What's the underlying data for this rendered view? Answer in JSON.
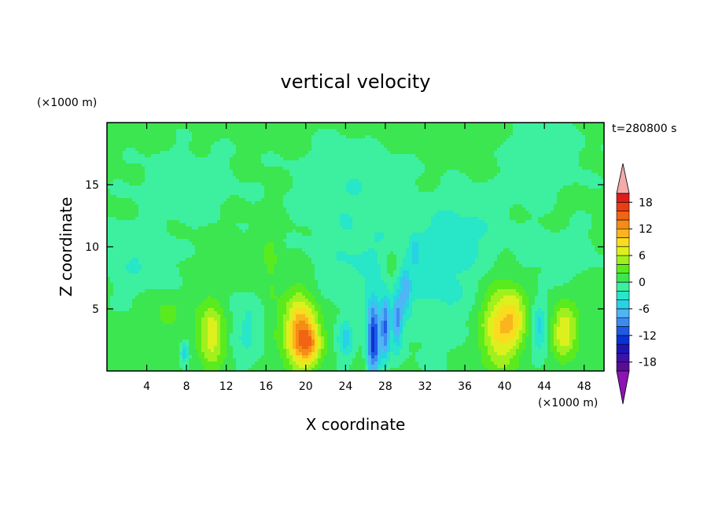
{
  "chart_data": {
    "type": "heatmap",
    "title": "vertical velocity",
    "xlabel": "X coordinate",
    "ylabel": "Z coordinate",
    "x_unit": "(×1000 m)",
    "y_unit": "(×1000 m)",
    "timestamp": "t=280800 s",
    "xlim": [
      0,
      50
    ],
    "ylim": [
      0,
      20
    ],
    "x_ticks": [
      4,
      8,
      12,
      16,
      20,
      24,
      28,
      32,
      36,
      40,
      44,
      48
    ],
    "y_ticks": [
      5,
      10,
      15
    ],
    "colorbar": {
      "levels": [
        -20,
        -18,
        -16,
        -14,
        -12,
        -10,
        -8,
        -6,
        -4,
        -2,
        0,
        2,
        4,
        6,
        8,
        10,
        12,
        14,
        16,
        18,
        20
      ],
      "tick_labels": [
        18,
        12,
        6,
        0,
        -6,
        -12,
        -18
      ],
      "colors": [
        "#5a0c96",
        "#3c12a8",
        "#1e16b4",
        "#0a32d2",
        "#1e5ae6",
        "#3c8cf0",
        "#50b4f5",
        "#28d2e6",
        "#28e6c8",
        "#3cf0a0",
        "#3ce650",
        "#5aeb1e",
        "#a0f01e",
        "#dcf01e",
        "#fadc1e",
        "#fab41e",
        "#f58c14",
        "#f06414",
        "#eb3c14",
        "#dc1e1e"
      ],
      "over_color": "#f5aaaa",
      "under_color": "#8c14b4"
    },
    "features": [
      {
        "x": 10.5,
        "z": 3.0,
        "w": 7,
        "sx": 0.9,
        "sz": 1.8
      },
      {
        "x": 19.5,
        "z": 3.0,
        "w": 13,
        "sx": 1.1,
        "sz": 2.0
      },
      {
        "x": 20.5,
        "z": 2.2,
        "w": 5,
        "sx": 0.8,
        "sz": 1.0
      },
      {
        "x": 39.5,
        "z": 3.5,
        "w": 9,
        "sx": 1.3,
        "sz": 2.2
      },
      {
        "x": 41.0,
        "z": 4.5,
        "w": 5,
        "sx": 0.8,
        "sz": 1.5
      },
      {
        "x": 46.0,
        "z": 3.2,
        "w": 7,
        "sx": 0.9,
        "sz": 1.5
      },
      {
        "x": 6.0,
        "z": 4.5,
        "w": 2.5,
        "sx": 1.0,
        "sz": 1.0
      },
      {
        "x": 16.5,
        "z": 8.5,
        "w": 2.0,
        "sx": 0.6,
        "sz": 3.0
      },
      {
        "x": 28.5,
        "z": 8.5,
        "w": 3.0,
        "sx": 0.6,
        "sz": 1.0
      },
      {
        "x": 26.8,
        "z": 2.5,
        "w": -14,
        "sx": 0.45,
        "sz": 2.2
      },
      {
        "x": 28.0,
        "z": 3.5,
        "w": -10,
        "sx": 0.35,
        "sz": 1.8
      },
      {
        "x": 29.2,
        "z": 4.0,
        "w": -8,
        "sx": 0.35,
        "sz": 1.6
      },
      {
        "x": 30.0,
        "z": 6.5,
        "w": -6,
        "sx": 0.35,
        "sz": 1.2
      },
      {
        "x": 31.0,
        "z": 9.5,
        "w": -4,
        "sx": 0.3,
        "sz": 0.8
      },
      {
        "x": 24.0,
        "z": 2.5,
        "w": -5,
        "sx": 0.6,
        "sz": 1.2
      },
      {
        "x": 7.8,
        "z": 1.5,
        "w": -6,
        "sx": 0.3,
        "sz": 0.6
      },
      {
        "x": 43.5,
        "z": 3.5,
        "w": -5,
        "sx": 0.6,
        "sz": 1.5
      },
      {
        "x": 14.0,
        "z": 3.5,
        "w": -3,
        "sx": 1.2,
        "sz": 2.0
      },
      {
        "x": 33.0,
        "z": 7.0,
        "w": -3,
        "sx": 3.5,
        "sz": 3.5
      },
      {
        "x": 25.0,
        "z": 9.0,
        "w": -2.5,
        "sx": 3.0,
        "sz": 2.5
      },
      {
        "x": 3.0,
        "z": 9.0,
        "w": -2.5,
        "sx": 2.5,
        "sz": 2.0
      },
      {
        "x": 8.0,
        "z": 15.0,
        "w": -2.2,
        "sx": 3.5,
        "sz": 2.0
      },
      {
        "x": 24.0,
        "z": 15.0,
        "w": -2.2,
        "sx": 4.0,
        "sz": 2.5
      },
      {
        "x": 36.0,
        "z": 11.5,
        "w": -2.2,
        "sx": 3.5,
        "sz": 2.0
      },
      {
        "x": 44.0,
        "z": 17.0,
        "w": -2.0,
        "sx": 3.0,
        "sz": 2.0
      },
      {
        "x": 46.0,
        "z": 9.5,
        "w": -2.0,
        "sx": 2.5,
        "sz": 1.5
      }
    ]
  }
}
